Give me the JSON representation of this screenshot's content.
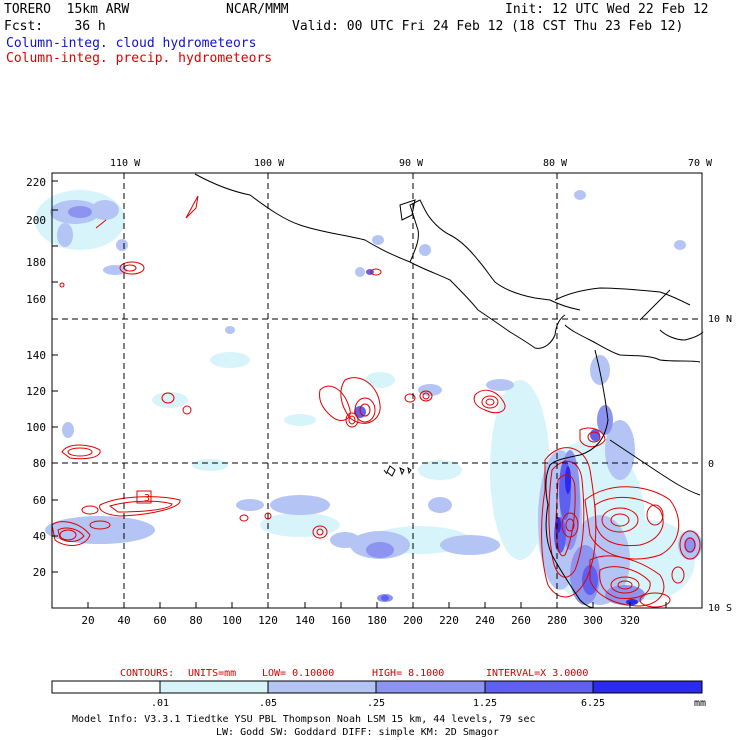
{
  "header": {
    "model": "TORERO  15km ARW",
    "org": "NCAR/MMM",
    "init": "Init: 12 UTC Wed 22 Feb 12",
    "fcst": "Fcst:    36 h",
    "valid": "Valid: 00 UTC Fri 24 Feb 12 (18 CST Thu 23 Feb 12)",
    "field1": "Column-integ. cloud hydrometeors",
    "field2": "Column-integ. precip. hydrometeors"
  },
  "colors": {
    "field1": "#1010d0",
    "field2": "#e00000",
    "contour": "#e00000",
    "coast": "#000000",
    "grid": "#000000",
    "shade_1": "#d8f4fb",
    "shade_2": "#b4c4f4",
    "shade_3": "#8c94f0",
    "shade_4": "#6060f0",
    "shade_5": "#2a2af0"
  },
  "map": {
    "lon_labels": [
      "110 W",
      "100 W",
      "90 W",
      "80 W",
      "70 W"
    ],
    "lat_labels": [
      "10 N",
      "0",
      "10 S"
    ],
    "x_ticks": [
      "20",
      "40",
      "60",
      "80",
      "100",
      "120",
      "140",
      "160",
      "180",
      "200",
      "220",
      "240",
      "260",
      "280",
      "300",
      "320"
    ],
    "y_ticks": [
      "20",
      "40",
      "60",
      "80",
      "100",
      "120",
      "140",
      "160",
      "180",
      "200",
      "220"
    ]
  },
  "contours": {
    "label": "CONTOURS:",
    "units": "UNITS=mm",
    "low": "LOW= 0.10000",
    "high": "HIGH=  8.1000",
    "interval": "INTERVAL=X  3.0000",
    "map_label": "3"
  },
  "colorbar": {
    "values": [
      ".01",
      ".05",
      ".25",
      "1.25",
      "6.25"
    ],
    "unit": "mm"
  },
  "footer": {
    "line1": "Model Info: V3.3.1   Tiedtke YSU PBL  Thompson    Noah LSM  15 km,   44 levels,   79 sec",
    "line2": "LW: Godd SW: Goddard DIFF: simple KM: 2D Smagor"
  }
}
